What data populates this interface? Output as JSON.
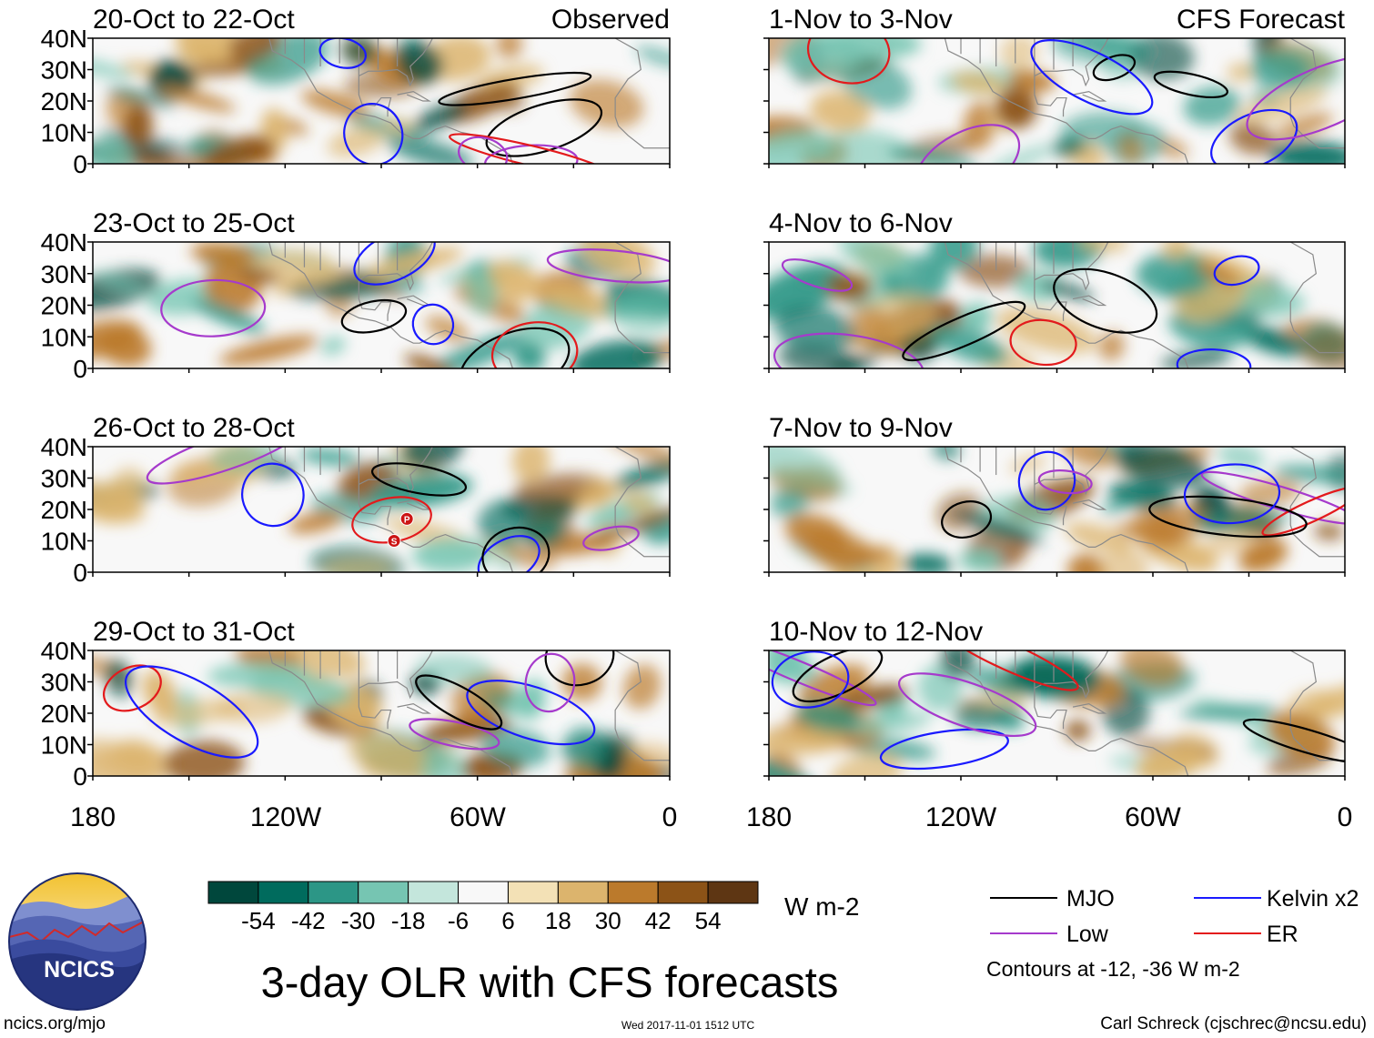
{
  "chart_data": {
    "type": "heatmap",
    "title": "3-day OLR with CFS forecasts",
    "units": "W m-2",
    "variable": "OLR anomaly (filled) with CFS-filtered wave contours",
    "x_axis": {
      "range": [
        -180,
        0
      ],
      "ticks": [
        -180,
        -120,
        -60,
        0
      ],
      "tick_labels": [
        "180",
        "120W",
        "60W",
        "0"
      ]
    },
    "y_axis": {
      "range": [
        0,
        40
      ],
      "ticks": [
        40,
        30,
        20,
        10,
        0
      ],
      "tick_labels": [
        "40N",
        "30N",
        "20N",
        "10N",
        "0"
      ]
    },
    "columns": [
      {
        "header": "Observed",
        "panels": [
          {
            "period": "20-Oct to 22-Oct"
          },
          {
            "period": "23-Oct to 25-Oct"
          },
          {
            "period": "26-Oct to 28-Oct"
          },
          {
            "period": "29-Oct to 31-Oct"
          }
        ]
      },
      {
        "header": "CFS Forecast",
        "panels": [
          {
            "period": "1-Nov to 3-Nov"
          },
          {
            "period": "4-Nov to 6-Nov"
          },
          {
            "period": "7-Nov to 9-Nov"
          },
          {
            "period": "10-Nov to 12-Nov"
          }
        ]
      }
    ],
    "colorbar": {
      "boundaries": [
        "-54",
        "-42",
        "-30",
        "-18",
        "-6",
        "6",
        "18",
        "30",
        "42",
        "54"
      ],
      "colors": [
        "#00473c",
        "#006b5d",
        "#2c9686",
        "#76c5b2",
        "#c4e6dc",
        "#f8f8f8",
        "#f3e1b6",
        "#dcb46d",
        "#bb7a2c",
        "#8c5317",
        "#5e3613"
      ]
    },
    "legend": {
      "items": [
        {
          "label": "MJO",
          "color": "#000000"
        },
        {
          "label": "Kelvin x2",
          "color": "#1a1aff"
        },
        {
          "label": "Low",
          "color": "#a63acc"
        },
        {
          "label": "ER",
          "color": "#e31a1c"
        }
      ],
      "note": "Contours at -12, -36 W m-2"
    },
    "storm_markers": [
      "P",
      "S"
    ]
  },
  "footer": {
    "logo_text": "NCICS",
    "website": "ncics.org/mjo",
    "timestamp": "Wed 2017-11-01 1512 UTC",
    "credit": "Carl Schreck (cjschrec@ncsu.edu)"
  }
}
